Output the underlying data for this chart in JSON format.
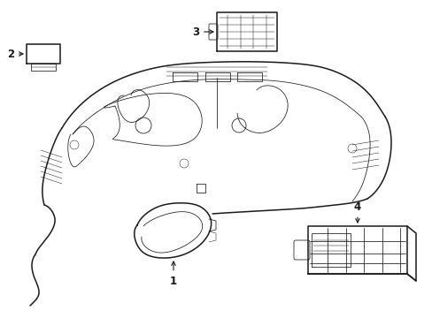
{
  "background_color": "#ffffff",
  "line_color": "#1a1a1a",
  "lw_main": 1.1,
  "lw_thin": 0.55,
  "lw_xtra": 0.35,
  "label_fontsize": 8.5,
  "fig_w": 4.89,
  "fig_h": 3.6,
  "dpi": 100,
  "xlim": [
    0,
    489
  ],
  "ylim": [
    0,
    360
  ]
}
